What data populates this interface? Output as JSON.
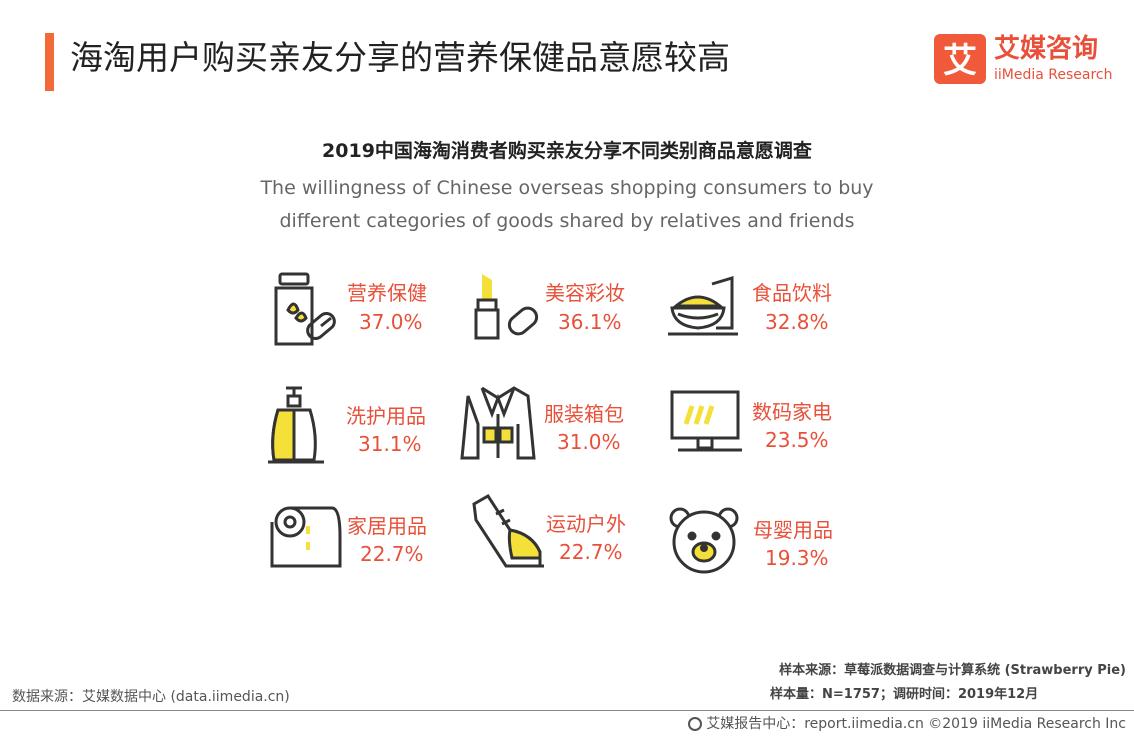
{
  "header": {
    "title": "海淘用户购买亲友分享的营养保健品意愿较高",
    "logo_cn": "艾媒咨询",
    "logo_en": "iiMedia Research",
    "logo_glyph": "艾"
  },
  "chart_data": {
    "type": "table",
    "title": "2019中国海淘消费者购买亲友分享不同类别商品意愿调查",
    "subtitle_line1": "The willingness of Chinese overseas shopping consumers to buy",
    "subtitle_line2": "different categories of goods shared by relatives and friends",
    "categories": [
      "营养保健",
      "美容彩妆",
      "食品饮料",
      "洗护用品",
      "服装箱包",
      "数码家电",
      "家居用品",
      "运动户外",
      "母婴用品"
    ],
    "values": [
      37.0,
      36.1,
      32.8,
      31.1,
      31.0,
      23.5,
      22.7,
      22.7,
      19.3
    ],
    "value_labels": [
      "37.0%",
      "36.1%",
      "32.8%",
      "31.1%",
      "31.0%",
      "23.5%",
      "22.7%",
      "22.7%",
      "19.3%"
    ],
    "icons": [
      "supplement-jar-icon",
      "lipstick-icon",
      "food-bowl-icon",
      "lotion-bottle-icon",
      "jacket-icon",
      "monitor-icon",
      "toilet-roll-icon",
      "boot-icon",
      "bear-icon"
    ],
    "accent_color": "#e8503a",
    "icon_fill": "#f5e03a"
  },
  "footer": {
    "source_left": "数据来源：艾媒数据中心 (data.iimedia.cn)",
    "sample_source": "样本来源：草莓派数据调查与计算系统 (Strawberry Pie)",
    "sample_size": "样本量：N=1757；调研时间：2019年12月",
    "copyright": "艾媒报告中心：report.iimedia.cn  ©2019  iiMedia Research  Inc"
  }
}
